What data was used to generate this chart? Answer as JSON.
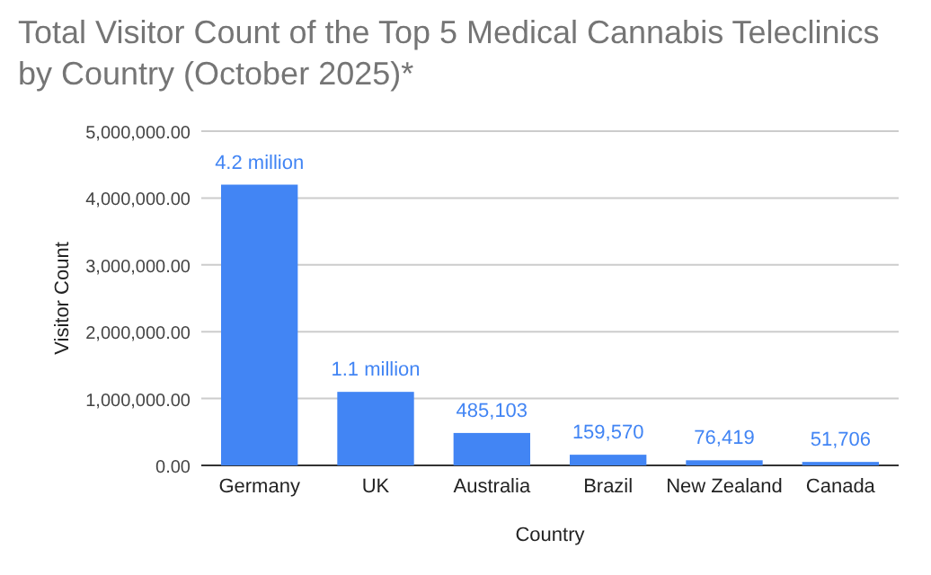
{
  "chart_data": {
    "type": "bar",
    "title": "Total Visitor Count of the Top 5 Medical Cannabis Teleclinics  by Country (October 2025)*",
    "xlabel": "Country",
    "ylabel": "Visitor Count",
    "categories": [
      "Germany",
      "UK",
      "Australia",
      "Brazil",
      "New Zealand",
      "Canada"
    ],
    "values": [
      4200000,
      1100000,
      485103,
      159570,
      76419,
      51706
    ],
    "value_labels": [
      "4.2 million",
      "1.1 million",
      "485,103",
      "159,570",
      "76,419",
      "51,706"
    ],
    "color": "#4285f4",
    "ylim": [
      0,
      5000000
    ],
    "yticks": [
      {
        "value": 0,
        "label": "0.00"
      },
      {
        "value": 1000000,
        "label": "1,000,000.00"
      },
      {
        "value": 2000000,
        "label": "2,000,000.00"
      },
      {
        "value": 3000000,
        "label": "3,000,000.00"
      },
      {
        "value": 4000000,
        "label": "4,000,000.00"
      },
      {
        "value": 5000000,
        "label": "5,000,000.00"
      }
    ],
    "grid": true
  }
}
